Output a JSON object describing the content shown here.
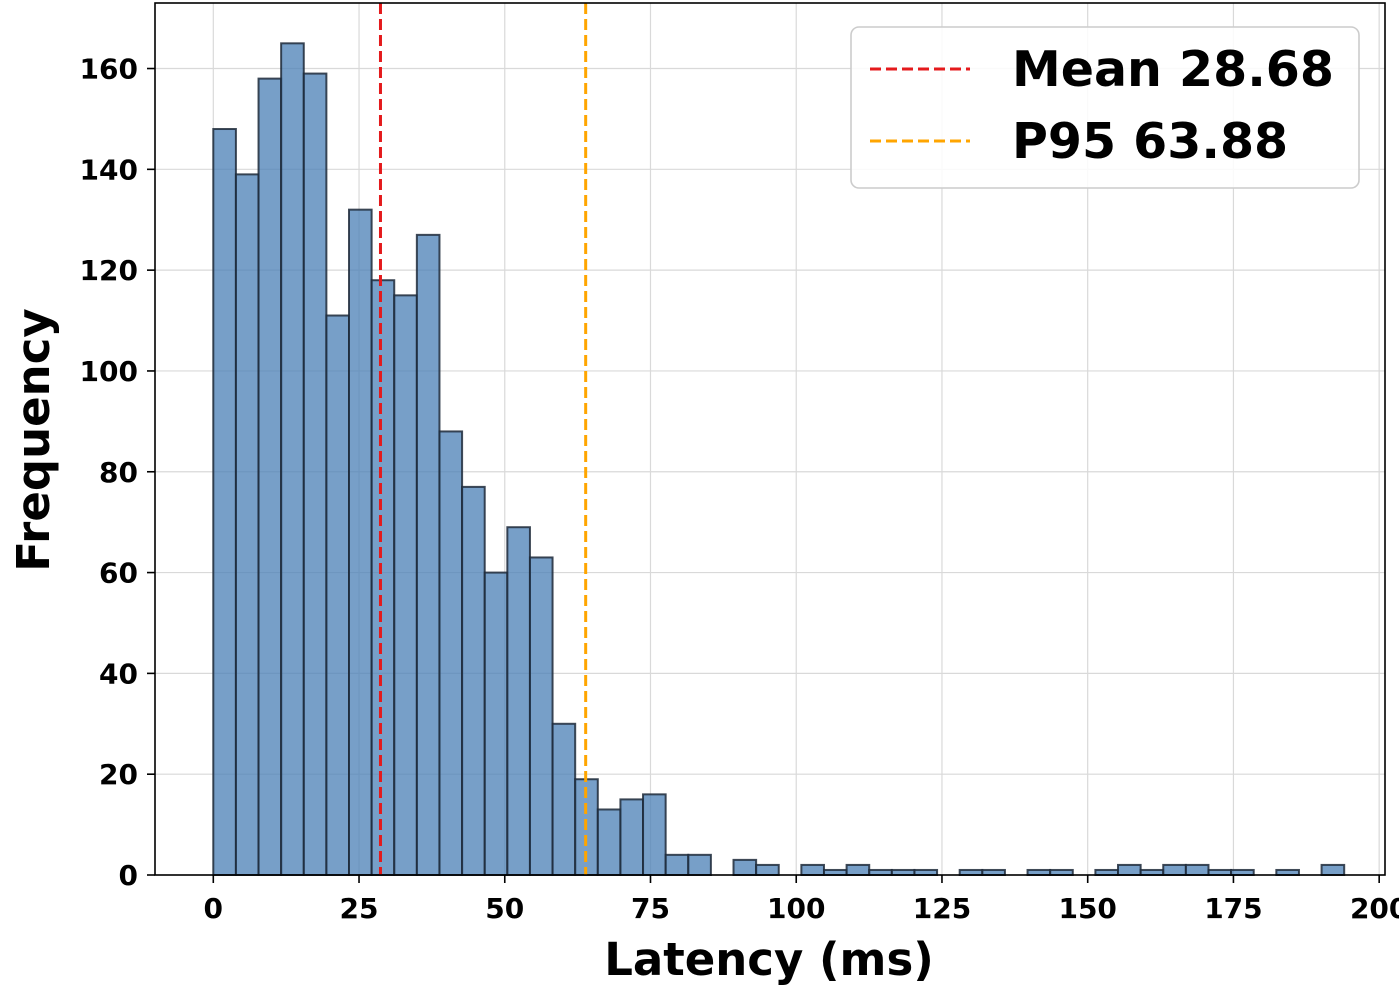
{
  "chart_data": {
    "type": "histogram",
    "xlabel": "Latency (ms)",
    "ylabel": "Frequency",
    "xlim": [
      -10,
      201
    ],
    "ylim": [
      0,
      173
    ],
    "x_ticks": [
      0,
      25,
      50,
      75,
      100,
      125,
      150,
      175,
      200
    ],
    "y_ticks": [
      0,
      20,
      40,
      60,
      80,
      100,
      120,
      140,
      160
    ],
    "grid": true,
    "bin_start": 0,
    "bin_width": 3.88,
    "bar_color": "#4a7fb5",
    "edge_color": "#1f2a3a",
    "counts": [
      148,
      139,
      158,
      165,
      159,
      111,
      132,
      118,
      115,
      127,
      88,
      77,
      60,
      69,
      63,
      30,
      19,
      13,
      15,
      16,
      4,
      4,
      0,
      3,
      2,
      0,
      2,
      1,
      2,
      1,
      1,
      1,
      0,
      1,
      1,
      0,
      1,
      1,
      0,
      1,
      2,
      1,
      2,
      2,
      1,
      1,
      0,
      1,
      0,
      2
    ],
    "reference_lines": [
      {
        "name": "Mean 28.68",
        "value": 28.68,
        "color": "#e41a1c",
        "style": "dashed"
      },
      {
        "name": "P95 63.88",
        "value": 63.88,
        "color": "#ffa500",
        "style": "dashed"
      }
    ],
    "legend_position": "top-right"
  }
}
